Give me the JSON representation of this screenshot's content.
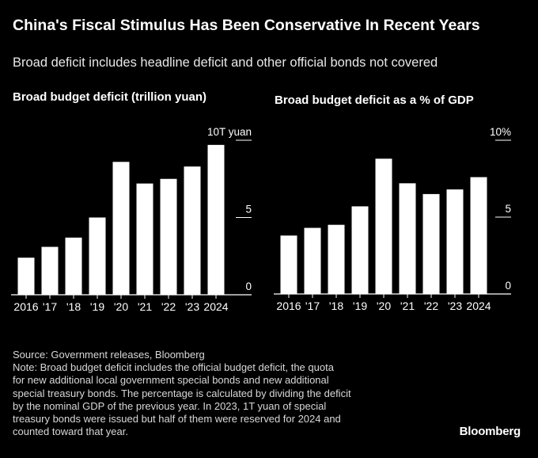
{
  "header": {
    "title": "China's Fiscal Stimulus Has Been Conservative In Recent Years",
    "subtitle": "Broad deficit includes headline deficit and other official bonds not covered"
  },
  "chart_data": [
    {
      "type": "bar",
      "title": "Broad budget deficit (trillion yuan)",
      "categories": [
        "2016",
        "'17",
        "'18",
        "'19",
        "'20",
        "'21",
        "'22",
        "'23",
        "2024"
      ],
      "values": [
        2.4,
        3.1,
        3.7,
        5.0,
        8.6,
        7.2,
        7.5,
        8.3,
        9.7
      ],
      "y_ticks": [
        {
          "value": 10,
          "label": "10T yuan"
        },
        {
          "value": 5,
          "label": "5"
        },
        {
          "value": 0,
          "label": "0"
        }
      ],
      "ylim": [
        0,
        10
      ],
      "grid": false,
      "color": "#ffffff"
    },
    {
      "type": "bar",
      "title": "Broad budget deficit as a % of GDP",
      "categories": [
        "2016",
        "'17",
        "'18",
        "'19",
        "'20",
        "'21",
        "'22",
        "'23",
        "2024"
      ],
      "values": [
        3.8,
        4.3,
        4.5,
        5.7,
        8.8,
        7.2,
        6.5,
        6.8,
        7.6
      ],
      "y_ticks": [
        {
          "value": 10,
          "label": "10%"
        },
        {
          "value": 5,
          "label": "5"
        },
        {
          "value": 0,
          "label": "0"
        }
      ],
      "ylim": [
        0,
        10
      ],
      "grid": false,
      "color": "#ffffff"
    }
  ],
  "footer": {
    "source_lines": [
      "Source: Government releases, Bloomberg",
      "Note: Broad budget deficit includes the official budget deficit, the quota",
      "for new additional local government special bonds and new additional",
      "special treasury bonds. The percentage is calculated by dividing the deficit",
      "by the nominal GDP of the previous year. In 2023, 1T yuan of special",
      "treasury bonds were issued but half of them were reserved for 2024 and",
      "counted toward that year."
    ],
    "logo": "Bloomberg"
  }
}
